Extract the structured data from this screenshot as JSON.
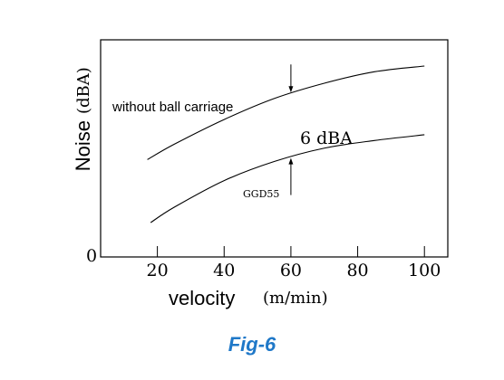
{
  "caption": "Fig-6",
  "caption_color": "#1f78c8",
  "chart_data": {
    "type": "line",
    "xlabel": "velocity",
    "xlabel_unit": "(m/min)",
    "ylabel": "Noise",
    "ylabel_unit": "(dBA)",
    "x_ticks": [
      "20",
      "40",
      "60",
      "80",
      "100"
    ],
    "y_ticks": [
      "0"
    ],
    "xlim": [
      3,
      107
    ],
    "grid": false,
    "series": [
      {
        "name": "without ball carriage",
        "x": [
          17,
          25,
          40,
          55,
          70,
          85,
          100
        ],
        "y": [
          0.51,
          0.59,
          0.72,
          0.83,
          0.91,
          0.97,
          1.0
        ]
      },
      {
        "name": "GGD55",
        "x": [
          18,
          25,
          40,
          55,
          70,
          85,
          100
        ],
        "y": [
          0.18,
          0.26,
          0.4,
          0.5,
          0.57,
          0.61,
          0.64
        ]
      }
    ],
    "annotation": {
      "text": "6 dBA",
      "x": 60
    }
  }
}
